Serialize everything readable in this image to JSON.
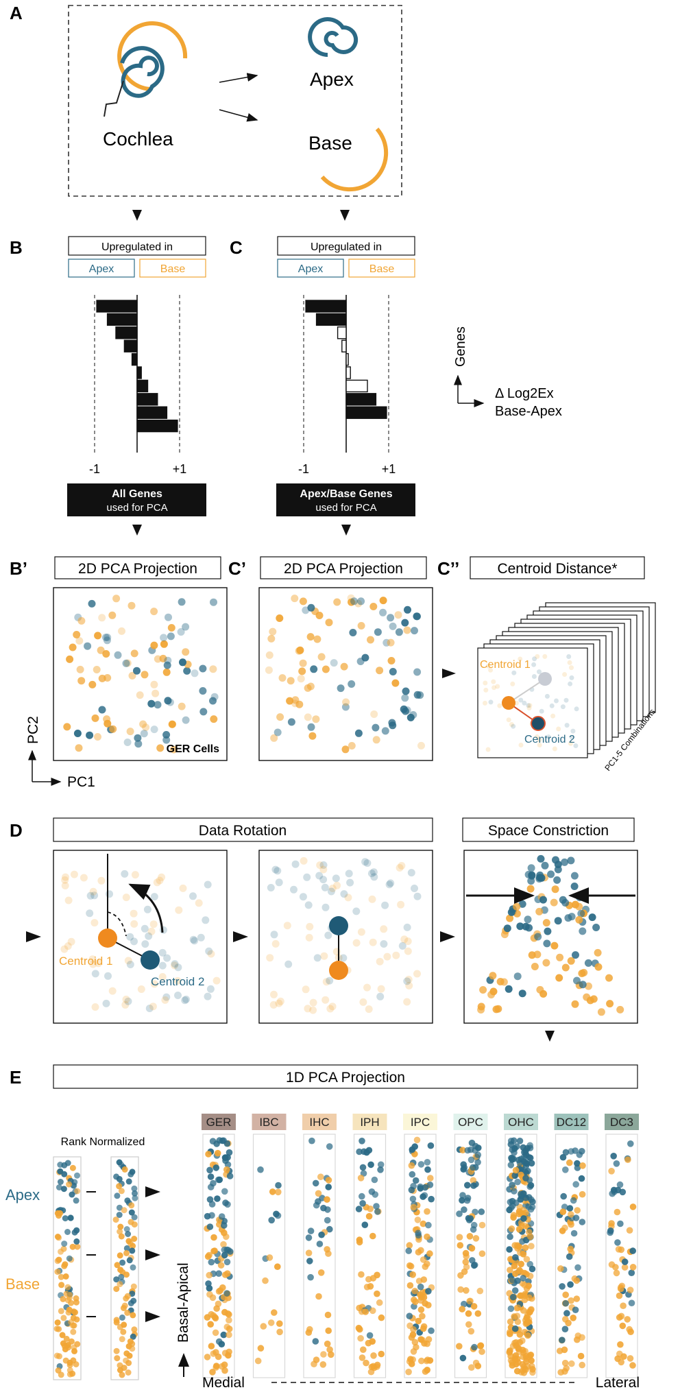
{
  "colors": {
    "apex": "#2b6a86",
    "base": "#f1a534",
    "base_strong": "#ef8a1f",
    "black": "#111111"
  },
  "panels": {
    "A": "A",
    "B": "B",
    "C": "C",
    "Bp": "B’",
    "Cp": "C’",
    "Cpp": "C’’",
    "D": "D",
    "E": "E"
  },
  "A": {
    "cochlea": "Cochlea",
    "apex": "Apex",
    "base": "Base"
  },
  "BC": {
    "upregulated": "Upregulated in",
    "apex": "Apex",
    "base": "Base",
    "tick_neg": "-1",
    "tick_pos": "+1",
    "B_caption_bold": "All Genes",
    "B_caption_sub": "used for PCA",
    "C_caption_bold": "Apex/Base Genes",
    "C_caption_sub": "used for PCA",
    "axis_y": "Genes",
    "axis_x_1": "Δ Log2Ex",
    "axis_x_2": "Base-Apex",
    "B_values": [
      -0.95,
      -0.7,
      -0.5,
      -0.3,
      -0.12,
      0.1,
      0.25,
      0.48,
      0.7,
      0.95
    ],
    "C_values": [
      -0.95,
      -0.7,
      -0.2,
      -0.1,
      0.05,
      0.1,
      0.5,
      0.7,
      0.95
    ],
    "C_filled": [
      true,
      true,
      false,
      false,
      false,
      false,
      false,
      true,
      true
    ]
  },
  "Bp": {
    "title": "2D PCA Projection",
    "cells": "GER Cells",
    "pc2": "PC2",
    "pc1": "PC1"
  },
  "Cp": {
    "title": "2D PCA Projection"
  },
  "Cpp": {
    "title": "Centroid Distance*",
    "centroid1": "Centroid 1",
    "centroid2": "Centroid 2",
    "combos": "PC1-5 Combinations"
  },
  "D": {
    "title_rotation": "Data Rotation",
    "title_constriction": "Space Constriction",
    "centroid1": "Centroid 1",
    "centroid2": "Centroid 2"
  },
  "E": {
    "title": "1D PCA Projection",
    "rank_normalized": "Rank Normalized",
    "apex": "Apex",
    "base": "Base",
    "basal_apical": "Basal-Apical",
    "medial": "Medial",
    "lateral": "Lateral",
    "cell_types": [
      {
        "name": "GER",
        "color": "#a58e86"
      },
      {
        "name": "IBC",
        "color": "#d2b2a4"
      },
      {
        "name": "IHC",
        "color": "#f0ceaa"
      },
      {
        "name": "IPH",
        "color": "#f6e4bd"
      },
      {
        "name": "IPC",
        "color": "#fbf6d8"
      },
      {
        "name": "OPC",
        "color": "#e0f2ec"
      },
      {
        "name": "OHC",
        "color": "#bcd9d2"
      },
      {
        "name": "DC12",
        "color": "#9dc2bb"
      },
      {
        "name": "DC3",
        "color": "#8ba79a"
      }
    ]
  }
}
